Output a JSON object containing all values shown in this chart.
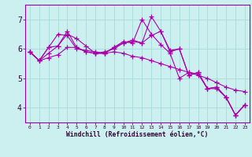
{
  "xlabel": "Windchill (Refroidissement éolien,°C)",
  "bg_color": "#ccf0f0",
  "line_color": "#aa00aa",
  "grid_color": "#aadddd",
  "spine_color": "#9900aa",
  "x_ticks": [
    0,
    1,
    2,
    3,
    4,
    5,
    6,
    7,
    8,
    9,
    10,
    11,
    12,
    13,
    14,
    15,
    16,
    17,
    18,
    19,
    20,
    21,
    22,
    23
  ],
  "y_ticks": [
    4,
    5,
    6,
    7
  ],
  "ylim": [
    3.5,
    7.5
  ],
  "xlim": [
    -0.5,
    23.5
  ],
  "series": [
    [
      5.9,
      5.6,
      5.7,
      5.8,
      6.05,
      6.05,
      5.9,
      5.85,
      5.85,
      5.9,
      5.85,
      5.75,
      5.7,
      5.6,
      5.5,
      5.4,
      5.3,
      5.2,
      5.1,
      5.0,
      4.85,
      4.7,
      4.6,
      4.55
    ],
    [
      5.9,
      5.6,
      6.05,
      6.5,
      6.45,
      6.0,
      5.95,
      5.9,
      5.85,
      6.05,
      6.2,
      6.25,
      6.2,
      7.1,
      6.6,
      5.95,
      6.0,
      5.1,
      5.2,
      4.65,
      4.7,
      4.35,
      3.75,
      4.1
    ],
    [
      5.9,
      5.6,
      5.85,
      6.1,
      6.6,
      6.05,
      5.9,
      5.85,
      5.85,
      6.05,
      6.25,
      6.2,
      7.0,
      6.5,
      6.15,
      5.85,
      5.0,
      5.2,
      5.15,
      4.65,
      4.65,
      4.35,
      3.75,
      4.1
    ],
    [
      5.9,
      5.6,
      6.05,
      6.1,
      6.5,
      6.35,
      6.1,
      5.85,
      5.9,
      6.0,
      6.2,
      6.3,
      6.2,
      6.45,
      6.6,
      5.9,
      6.0,
      5.1,
      5.2,
      4.65,
      4.7,
      4.35,
      3.75,
      4.1
    ]
  ]
}
